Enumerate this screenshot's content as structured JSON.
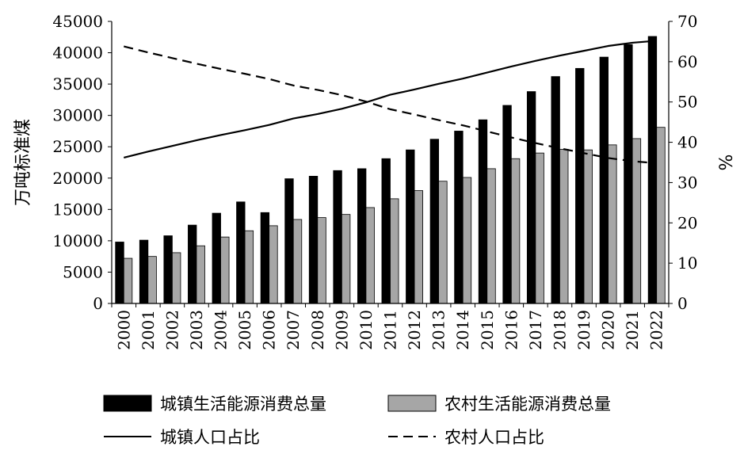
{
  "chart_data": {
    "type": "bar",
    "categories": [
      "2000",
      "2001",
      "2002",
      "2003",
      "2004",
      "2005",
      "2006",
      "2007",
      "2008",
      "2009",
      "2010",
      "2011",
      "2012",
      "2013",
      "2014",
      "2015",
      "2016",
      "2017",
      "2018",
      "2019",
      "2020",
      "2021",
      "2022"
    ],
    "series": [
      {
        "name": "城镇生活能源消费总量",
        "kind": "bar",
        "axis": "left",
        "color": "#000000",
        "values": [
          9800,
          10100,
          10800,
          12500,
          14400,
          16200,
          14500,
          19900,
          20300,
          21200,
          21500,
          23100,
          24500,
          26200,
          27500,
          29300,
          31600,
          33800,
          36200,
          37500,
          39300,
          41300,
          42600
        ]
      },
      {
        "name": "农村生活能源消费总量",
        "kind": "bar",
        "axis": "left",
        "color": "#a6a6a6",
        "values": [
          7200,
          7500,
          8100,
          9200,
          10600,
          11600,
          12400,
          13400,
          13700,
          14200,
          15300,
          16700,
          18000,
          19500,
          20100,
          21500,
          23100,
          24000,
          24600,
          24500,
          25300,
          26300,
          28100
        ]
      },
      {
        "name": "城镇人口占比",
        "kind": "line",
        "axis": "right",
        "color": "#000000",
        "dash": "none",
        "values": [
          36.2,
          37.7,
          39.1,
          40.5,
          41.8,
          43.0,
          44.3,
          45.9,
          47.0,
          48.3,
          49.9,
          51.8,
          53.1,
          54.5,
          55.8,
          57.3,
          58.8,
          60.2,
          61.5,
          62.7,
          63.9,
          64.7,
          65.2
        ]
      },
      {
        "name": "农村人口占比",
        "kind": "line",
        "axis": "right",
        "color": "#000000",
        "dash": "dashed",
        "values": [
          63.8,
          62.3,
          60.9,
          59.5,
          58.2,
          57.0,
          55.7,
          54.1,
          53.0,
          51.7,
          50.1,
          48.2,
          46.9,
          45.5,
          44.2,
          42.7,
          41.2,
          39.8,
          38.5,
          37.3,
          36.1,
          35.3,
          34.8
        ]
      }
    ],
    "ylabel": "万吨标准煤",
    "y2label": "%",
    "ylim": [
      0,
      45000
    ],
    "yticks": [
      0,
      5000,
      10000,
      15000,
      20000,
      25000,
      30000,
      35000,
      40000,
      45000
    ],
    "y2lim": [
      0,
      70
    ],
    "y2ticks": [
      0,
      10,
      20,
      30,
      40,
      50,
      60,
      70
    ],
    "grid": false,
    "legend_position": "bottom"
  }
}
